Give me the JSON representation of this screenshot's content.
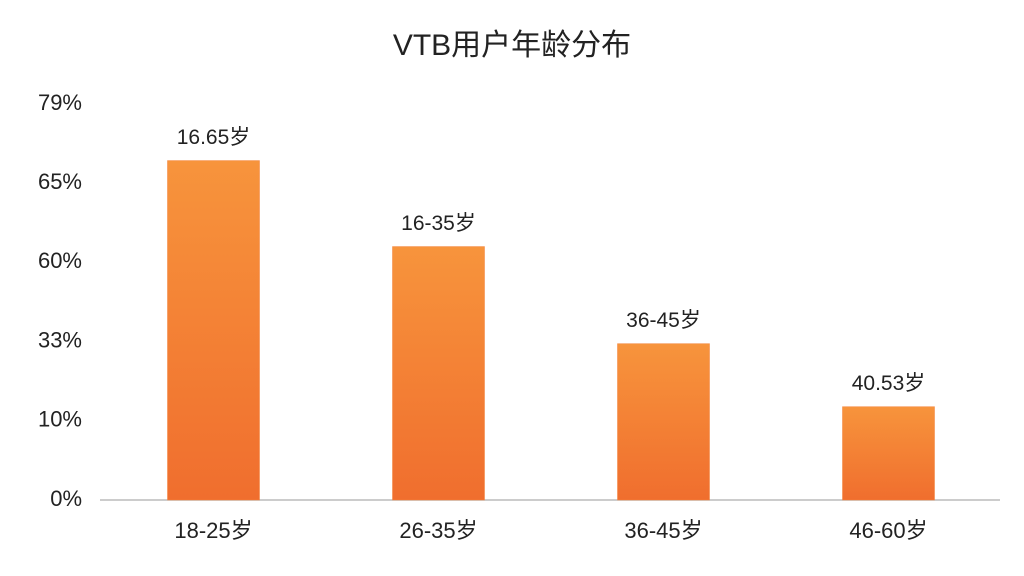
{
  "chart_data": {
    "type": "bar",
    "title": "VTB用户年龄分布",
    "categories": [
      "18-25岁",
      "26-35岁",
      "36-45岁",
      "46-60岁"
    ],
    "values": [
      69,
      61,
      32.4,
      14.1
    ],
    "annotations": [
      "16.65岁",
      "16-35岁",
      "36-45岁",
      "40.53岁"
    ],
    "color": "#f4823a",
    "ylim": [
      0,
      79
    ],
    "yticks": [
      {
        "value": 0,
        "label": "0%"
      },
      {
        "value": 10,
        "label": "10%"
      },
      {
        "value": 33,
        "label": "33%"
      },
      {
        "value": 60,
        "label": "60%"
      },
      {
        "value": 65,
        "label": "65%"
      },
      {
        "value": 79,
        "label": "79%"
      }
    ],
    "grid": false
  }
}
